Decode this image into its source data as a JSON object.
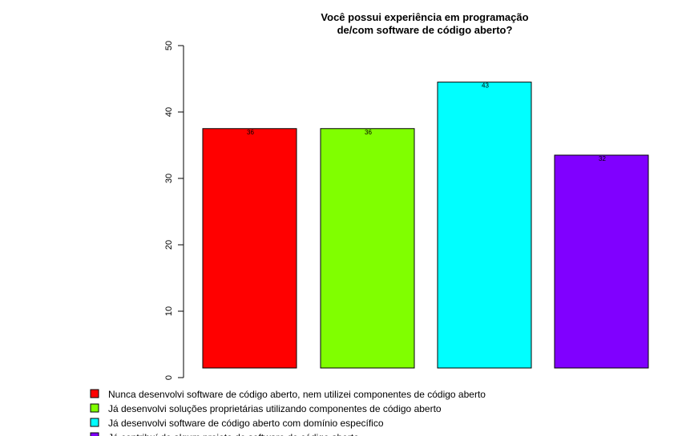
{
  "chart_data": {
    "type": "bar",
    "title": "Você possui experiência em programação\nde/com software de código aberto?",
    "xlabel": "",
    "ylabel": "",
    "ylim": [
      0,
      50
    ],
    "yticks": [
      0,
      10,
      20,
      30,
      40,
      50
    ],
    "categories": [
      "Nunca desenvolvi software de código aberto, nem utilizei componentes de código aberto",
      "Já desenvolvi soluções proprietárias utilizando componentes de código aberto",
      "Já desenvolvi software de código aberto com domínio específico",
      "Já contribuí de algum projeto de software de código aberto"
    ],
    "values": [
      36,
      36,
      43,
      32
    ],
    "value_labels": [
      "36",
      "36",
      "43",
      "32"
    ],
    "colors": [
      "#ff0000",
      "#80ff00",
      "#00ffff",
      "#8000ff"
    ],
    "grid": false,
    "legend_position": "bottom-left"
  }
}
